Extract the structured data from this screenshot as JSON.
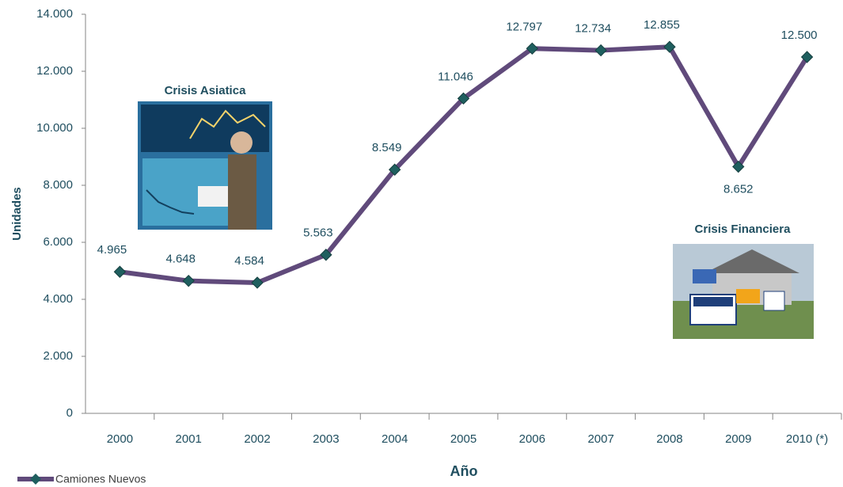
{
  "chart_data": {
    "type": "line",
    "categories": [
      "2000",
      "2001",
      "2002",
      "2003",
      "2004",
      "2005",
      "2006",
      "2007",
      "2008",
      "2009",
      "2010 (*)"
    ],
    "series": [
      {
        "name": "Camiones Nuevos",
        "color": "#604a7b",
        "marker_color": "#1f5f5f",
        "values": [
          4965,
          4648,
          4584,
          5563,
          8549,
          11046,
          12797,
          12734,
          12855,
          8652,
          12500
        ],
        "value_labels": [
          "4.965",
          "4.648",
          "4.584",
          "5.563",
          "8.549",
          "11.046",
          "12.797",
          "12.734",
          "12.855",
          "8.652",
          "12.500"
        ]
      }
    ],
    "ylim": [
      0,
      14000
    ],
    "yticks": [
      0,
      {
        "value": 2000,
        "label": "2.000"
      },
      {
        "value": 4000,
        "label": "4.000"
      },
      {
        "value": 6000,
        "label": "6.000"
      },
      {
        "value": 8000,
        "label": "8.000"
      },
      {
        "value": 10000,
        "label": "10.000"
      },
      {
        "value": 12000,
        "label": "12.000"
      },
      {
        "value": 14000,
        "label": "14.000"
      }
    ],
    "y_label": "Unidades",
    "x_label": "Año",
    "annotations": [
      "Crisis Asiatica",
      "Crisis Financiera"
    ],
    "legend": "bottom-left"
  }
}
